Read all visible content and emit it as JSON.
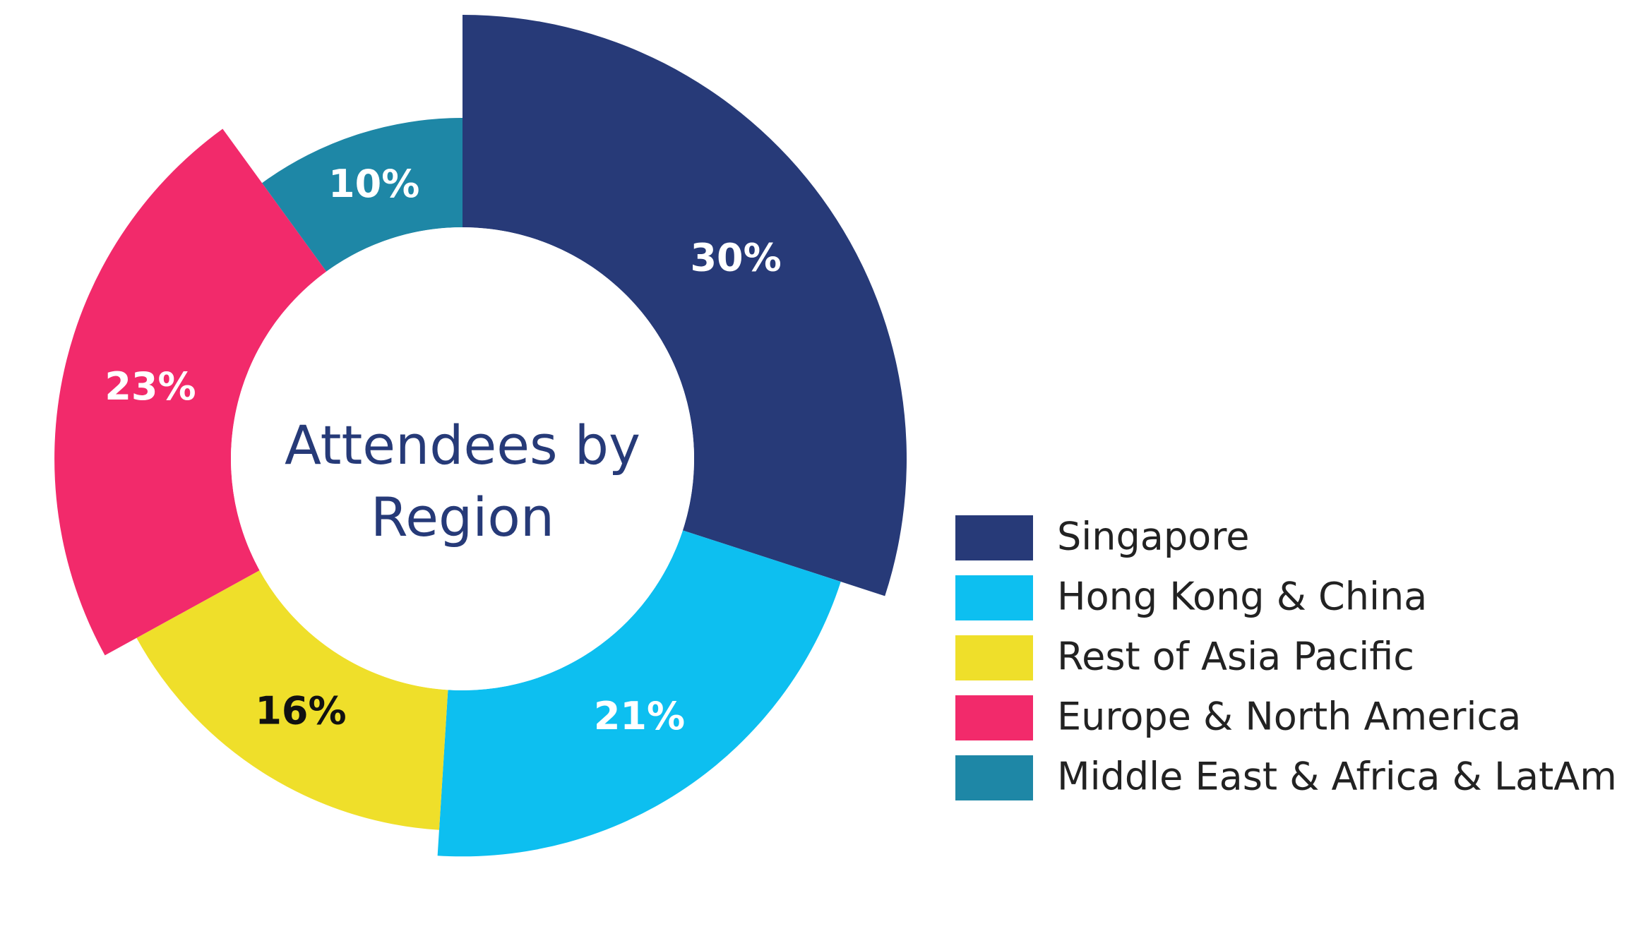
{
  "chart_data": {
    "type": "pie",
    "title": "Attendees by Region",
    "categories": [
      "Singapore",
      "Hong Kong & China",
      "Rest of Asia Pacific",
      "Europe & North America",
      "Middle East & Africa & LatAm"
    ],
    "values": [
      30,
      21,
      16,
      23,
      10
    ],
    "value_labels": [
      "30%",
      "21%",
      "16%",
      "23%",
      "10%"
    ],
    "colors": [
      "#273a78",
      "#0dbff0",
      "#efdf2a",
      "#f22a6b",
      "#1e87a6"
    ],
    "legend": "right"
  }
}
